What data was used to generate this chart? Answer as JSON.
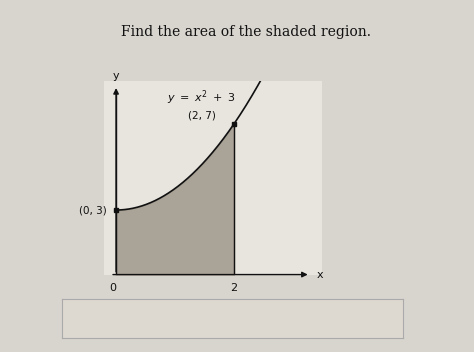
{
  "title": "Find the area of the shaded region.",
  "point1_label": "(0, 3)",
  "point2_label": "(2, 7)",
  "x_label": "x",
  "y_label": "y",
  "origin_label": "0",
  "x_tick_label": "2",
  "bg_color": "#e8e4de",
  "fig_bg": "#d8d4ce",
  "shaded_color": "#a0988c",
  "shaded_alpha": 0.85,
  "curve_color": "#111111",
  "axes_color": "#111111",
  "title_fontsize": 10,
  "annotation_fontsize": 8,
  "eq_fontsize": 8,
  "answer_box_color": "#ddd8d0",
  "answer_box_edge": "#aaaaaa"
}
